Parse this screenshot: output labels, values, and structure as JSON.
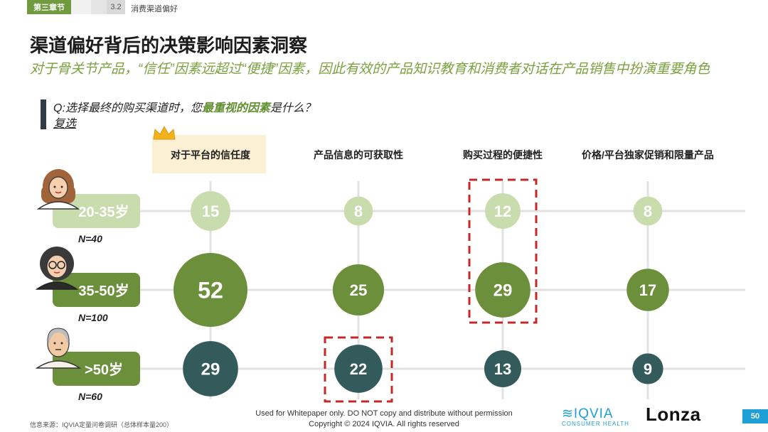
{
  "header": {
    "chapter": "第三章节",
    "section_number": "3.2",
    "section_title": "消费渠道偏好"
  },
  "title": "渠道偏好背后的决策影响因素洞察",
  "subtitle": "对于骨关节产品，“信任”因素远超过“便捷”因素，因此有效的产品知识教育和消费者对话在产品销售中扮演重要角色",
  "question": {
    "prefix": "Q:选择最终的购买渠道时，您",
    "emphasis": "最重视的因素",
    "suffix": "是什么？",
    "note": "复选"
  },
  "chart_data": {
    "type": "bubble",
    "categories": [
      "对于平台的信任度",
      "产品信息的可获取性",
      "购买过程的便捷性",
      "价格/平台独家促销和限量产品"
    ],
    "series": [
      {
        "name": "20-35岁",
        "n_label": "N=40",
        "values": [
          15,
          8,
          12,
          8
        ],
        "color": "#c9dcae",
        "avatar": "woman-avatar-icon"
      },
      {
        "name": "35-50岁",
        "n_label": "N=100",
        "values": [
          52,
          25,
          29,
          17
        ],
        "color": "#6b8f3a",
        "avatar": "woman-glasses-avatar-icon"
      },
      {
        "name": ">50岁",
        "n_label": "N=60",
        "values": [
          29,
          22,
          13,
          9
        ],
        "color": "#345b5b",
        "avatar": "elderly-man-avatar-icon"
      }
    ],
    "highlight_category": "对于平台的信任度",
    "dashed_boxes": [
      {
        "category": "购买过程的便捷性",
        "series": [
          "20-35岁",
          "35-50岁"
        ]
      },
      {
        "category": "产品信息的可获取性",
        "series": [
          ">50岁"
        ]
      }
    ],
    "colors": {
      "highlight_bg": "#fbf0d3",
      "label_bg": "#6b8f3a",
      "label_bg_light": "#c9dcae",
      "grid": "#e2e2e2",
      "dash": "#c62828",
      "crown": "#f2b21c"
    }
  },
  "footer": {
    "source": "信息来源：IQVIA定量问卷调研（总体样本量200）",
    "notice": "Used for Whitepaper only. DO NOT copy and distribute without permission",
    "copyright": "Copyright © 2024 IQVIA. All rights reserved",
    "iqvia_logo": "IQVIA",
    "iqvia_sub": "CONSUMER HEALTH",
    "lonza_logo": "Lonza",
    "page_number": "50"
  }
}
